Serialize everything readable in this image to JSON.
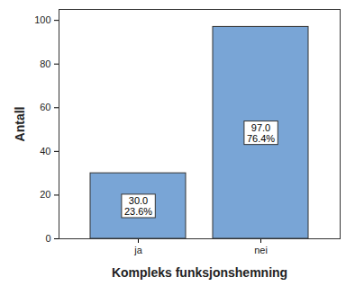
{
  "chart_data": {
    "type": "bar",
    "x_label": "Kompleks funksjonshemning",
    "y_label": "Antall",
    "categories": [
      "ja",
      "nei"
    ],
    "values": [
      30,
      97
    ],
    "value_labels": [
      "30.0\n23.6%",
      "97.0\n76.4%"
    ],
    "data_labels": true,
    "color": "#79a5d6",
    "ylim": [
      0,
      105
    ],
    "yticks": [
      0,
      20,
      40,
      60,
      80,
      100
    ],
    "grid": false
  }
}
